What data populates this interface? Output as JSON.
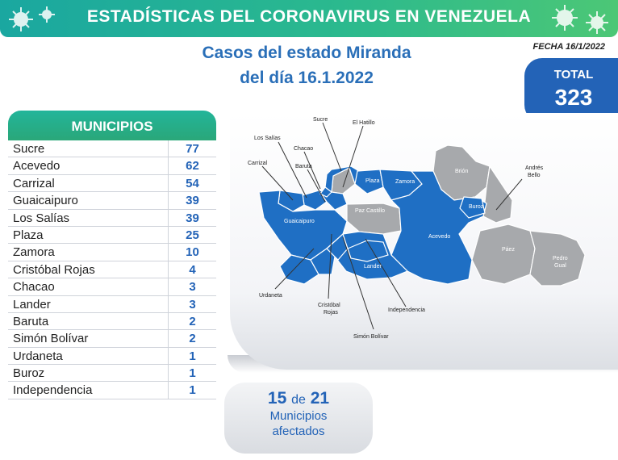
{
  "header": {
    "title": "ESTADÍSTICAS DEL CORONAVIRUS EN VENEZUELA"
  },
  "subtitle": {
    "line1": "Casos del estado Miranda",
    "line2": "del día 16.1.2022"
  },
  "fecha": "FECHA 16/1/2022",
  "total": {
    "label": "TOTAL",
    "value": "323"
  },
  "municipios": {
    "header": "MUNICIPIOS",
    "rows": [
      {
        "name": "Sucre",
        "count": "77"
      },
      {
        "name": "Acevedo",
        "count": "62"
      },
      {
        "name": "Carrizal",
        "count": "54"
      },
      {
        "name": "Guaicaipuro",
        "count": "39"
      },
      {
        "name": "Los Salías",
        "count": "39"
      },
      {
        "name": "Plaza",
        "count": "25"
      },
      {
        "name": "Zamora",
        "count": "10"
      },
      {
        "name": "Cristóbal Rojas",
        "count": "4"
      },
      {
        "name": "Chacao",
        "count": "3"
      },
      {
        "name": "Lander",
        "count": "3"
      },
      {
        "name": "Baruta",
        "count": "2"
      },
      {
        "name": "Simón Bolívar",
        "count": "2"
      },
      {
        "name": "Urdaneta",
        "count": "1"
      },
      {
        "name": "Buroz",
        "count": "1"
      },
      {
        "name": "Independencia",
        "count": "1"
      }
    ]
  },
  "map": {
    "labels": {
      "sucre": "Sucre",
      "el_hatillo": "El Hatillo",
      "los_salias": "Los Salías",
      "chacao": "Chacao",
      "carrizal": "Carrizal",
      "baruta": "Baruta",
      "plaza": "Plaza",
      "zamora": "Zamora",
      "brion": "Brión",
      "andres_bello_1": "Andrés",
      "andres_bello_2": "Bello",
      "paz_castillo": "Paz Castillo",
      "guaicaipuro": "Guaicaipuro",
      "buroz": "Buroz",
      "acevedo": "Acevedo",
      "paez": "Páez",
      "pedro_gual_1": "Pedro",
      "pedro_gual_2": "Gual",
      "lander": "Lander",
      "urdaneta": "Urdaneta",
      "cristobal_rojas_1": "Cristóbal",
      "cristobal_rojas_2": "Rojas",
      "independencia": "Independencia",
      "simon_bolivar": "Simón Bolívar"
    },
    "colors": {
      "affected": "#1f6fc4",
      "unaffected": "#a7a9ac"
    }
  },
  "affected": {
    "count": "15",
    "of": "de",
    "total": "21",
    "line1": "Municipios",
    "line2": "afectados"
  },
  "colors": {
    "banner": "#2bb98e",
    "accent_blue": "#2363b7",
    "title_blue": "#2a6fb8"
  }
}
